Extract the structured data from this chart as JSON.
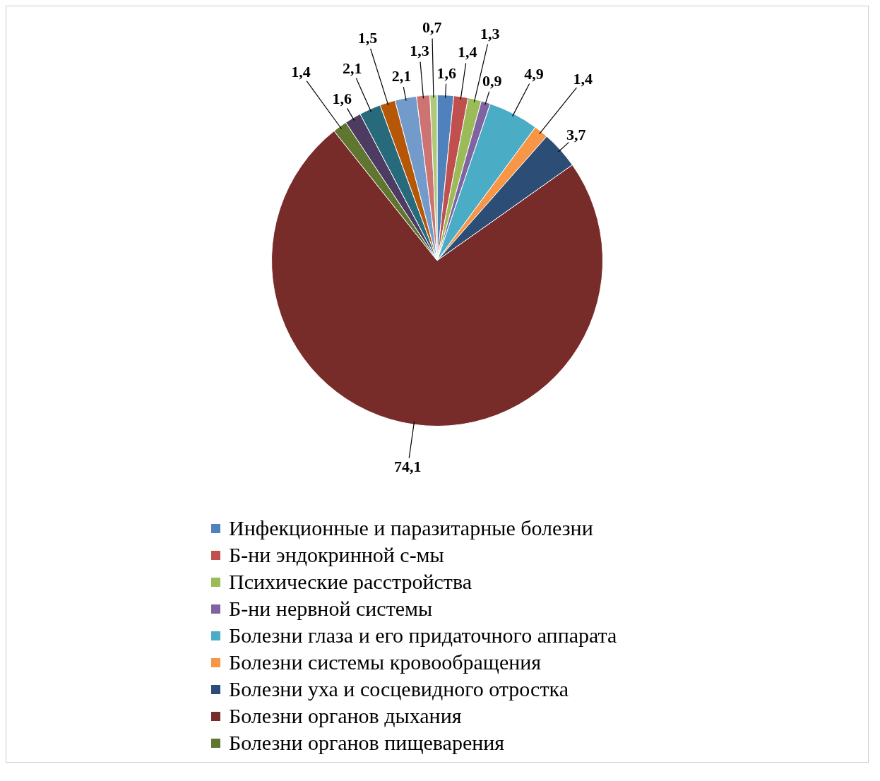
{
  "chart_data": {
    "type": "pie",
    "categories": [
      "Инфекционные и паразитарные болезни",
      "Б-ни эндокринной с-мы",
      "Психические расстройства",
      "Б-ни нервной системы",
      "Болезни глаза и его придаточного аппарата",
      "Болезни системы кровообращения",
      "Болезни уха и сосцевидного отростка",
      "Болезни органов дыхания",
      "Болезни органов пищеварения",
      null,
      null,
      null,
      null,
      null,
      null
    ],
    "values": [
      1.6,
      1.4,
      1.3,
      0.9,
      4.9,
      1.4,
      3.7,
      74.1,
      1.4,
      1.6,
      2.1,
      1.5,
      2.1,
      1.3,
      0.7
    ],
    "value_labels": [
      "1,6",
      "1,4",
      "1,3",
      "0,9",
      "4,9",
      "1,4",
      "3,7",
      "74,1",
      "1,4",
      "1,6",
      "2,1",
      "1,5",
      "2,1",
      "1,3",
      "0,7"
    ],
    "colors": [
      "#4f81bd",
      "#c0504d",
      "#9bbb59",
      "#8064a2",
      "#4bacc6",
      "#f79646",
      "#2c4d75",
      "#772c2a",
      "#5f7530",
      "#4d3b62",
      "#276a7c",
      "#b65708",
      "#729aca",
      "#cd7371",
      "#afc97a"
    ],
    "legend": "bottom"
  }
}
